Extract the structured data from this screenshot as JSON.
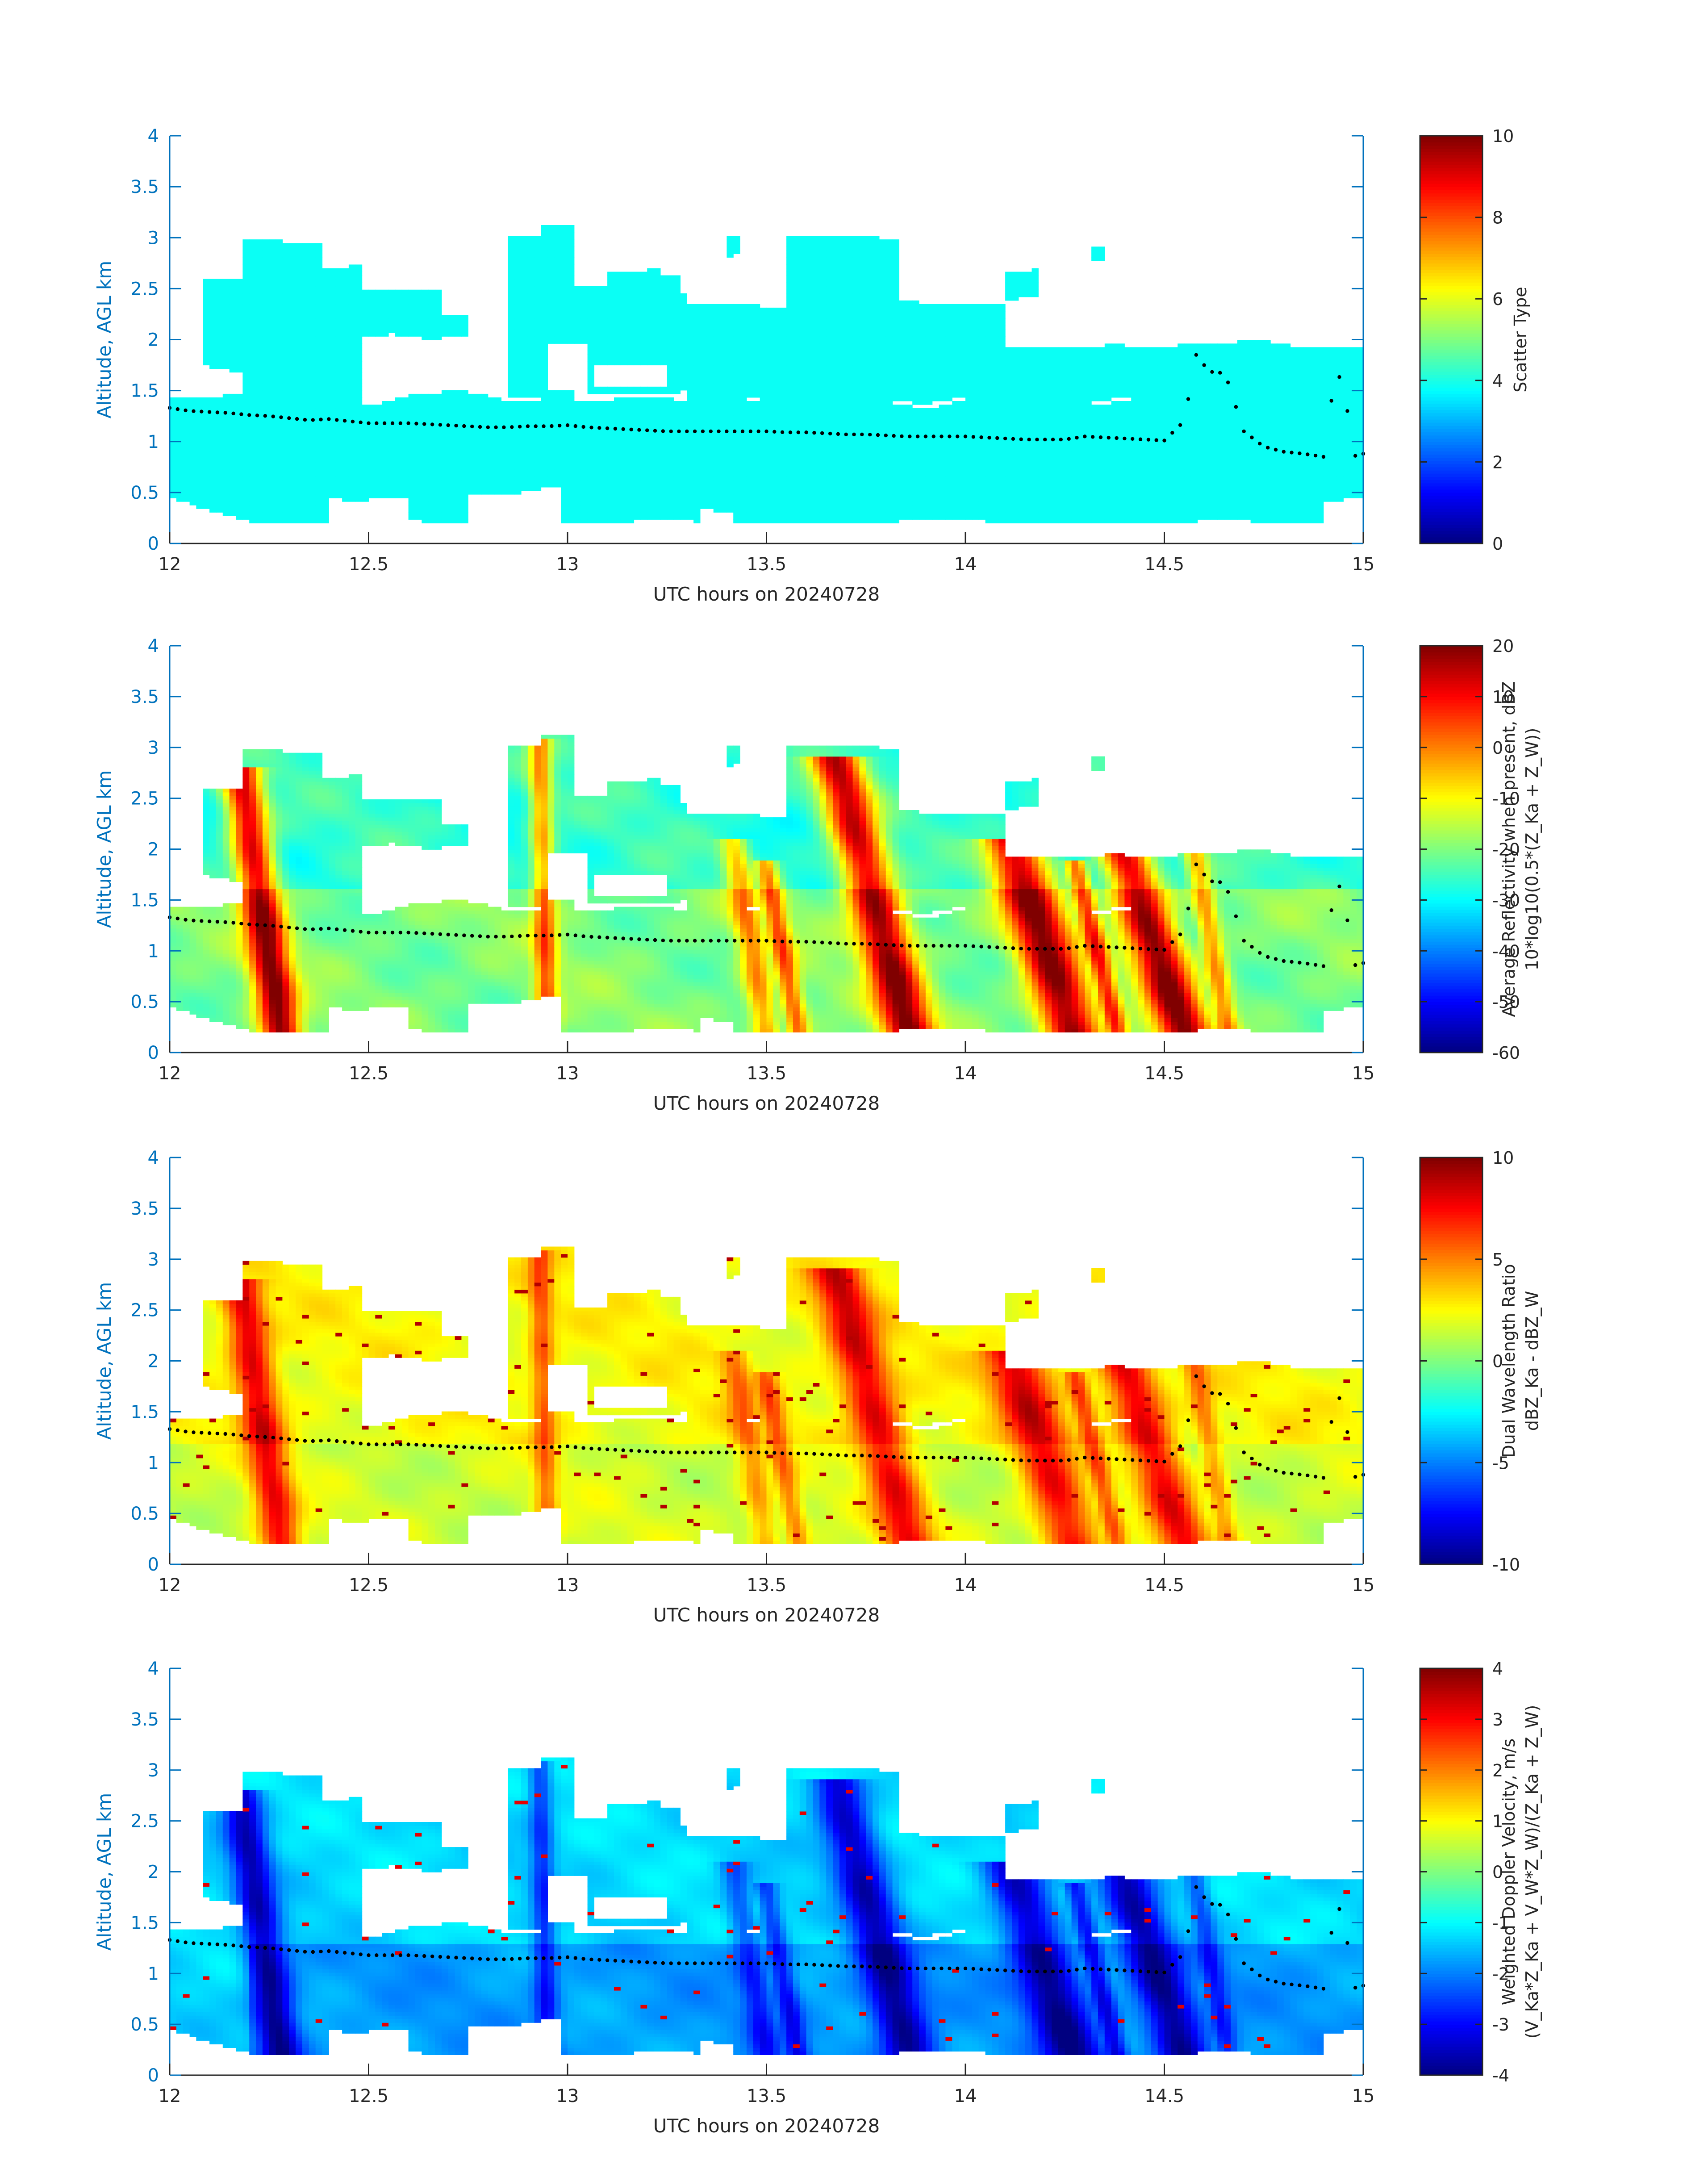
{
  "chart_data": [
    {
      "type": "heatmap",
      "field": "scatter_type",
      "xlabel": "UTC hours on 20240728",
      "ylabel": "Altitude, AGL km",
      "xlim": [
        12,
        15
      ],
      "ylim": [
        0,
        4
      ],
      "x_ticks": [
        "12",
        "12.5",
        "13",
        "13.5",
        "14",
        "14.5",
        "15"
      ],
      "y_ticks": [
        "0",
        "0.5",
        "1",
        "1.5",
        "2",
        "2.5",
        "3",
        "3.5",
        "4"
      ],
      "colorbar": {
        "label_lines": [
          "Scatter Type"
        ],
        "clim": [
          0,
          10
        ],
        "ticks": [
          "0",
          "2",
          "4",
          "6",
          "8",
          "10"
        ],
        "colormap": "jet"
      }
    },
    {
      "type": "heatmap",
      "field": "reflectivity",
      "xlabel": "UTC hours on 20240728",
      "ylabel": "Altitude, AGL km",
      "xlim": [
        12,
        15
      ],
      "ylim": [
        0,
        4
      ],
      "x_ticks": [
        "12",
        "12.5",
        "13",
        "13.5",
        "14",
        "14.5",
        "15"
      ],
      "y_ticks": [
        "0",
        "0.5",
        "1",
        "1.5",
        "2",
        "2.5",
        "3",
        "3.5",
        "4"
      ],
      "colorbar": {
        "label_lines": [
          "Average Reflectivity when present, dBZ",
          "10*log10(0.5*(Z_Ka + Z_W))"
        ],
        "clim": [
          -60,
          20
        ],
        "ticks": [
          "-60",
          "-50",
          "-40",
          "-30",
          "-20",
          "-10",
          "0",
          "10",
          "20"
        ],
        "colormap": "jet"
      }
    },
    {
      "type": "heatmap",
      "field": "dual_wavelength_ratio",
      "xlabel": "UTC hours on 20240728",
      "ylabel": "Altitude, AGL km",
      "xlim": [
        12,
        15
      ],
      "ylim": [
        0,
        4
      ],
      "x_ticks": [
        "12",
        "12.5",
        "13",
        "13.5",
        "14",
        "14.5",
        "15"
      ],
      "y_ticks": [
        "0",
        "0.5",
        "1",
        "1.5",
        "2",
        "2.5",
        "3",
        "3.5",
        "4"
      ],
      "colorbar": {
        "label_lines": [
          "Dual Wavelength Ratio",
          "dBZ_Ka - dBZ_W"
        ],
        "clim": [
          -10,
          10
        ],
        "ticks": [
          "-10",
          "-5",
          "0",
          "5",
          "10"
        ],
        "colormap": "jet"
      }
    },
    {
      "type": "heatmap",
      "field": "doppler_velocity",
      "xlabel": "UTC hours on 20240728",
      "ylabel": "Altitude, AGL km",
      "xlim": [
        12,
        15
      ],
      "ylim": [
        0,
        4
      ],
      "x_ticks": [
        "12",
        "12.5",
        "13",
        "13.5",
        "14",
        "14.5",
        "15"
      ],
      "y_ticks": [
        "0",
        "0.5",
        "1",
        "1.5",
        "2",
        "2.5",
        "3",
        "3.5",
        "4"
      ],
      "colorbar": {
        "label_lines": [
          "Weighted Doppler Velocity, m/s",
          "(V_Ka*Z_Ka + V_W*Z_W)/(Z_Ka + Z_W)"
        ],
        "clim": [
          -4,
          4
        ],
        "ticks": [
          "-4",
          "-3",
          "-2",
          "-1",
          "0",
          "1",
          "2",
          "3",
          "4"
        ],
        "colormap": "jet"
      }
    }
  ],
  "cloud_base_points": [
    [
      12.0,
      1.33
    ],
    [
      12.05,
      1.3
    ],
    [
      12.1,
      1.29
    ],
    [
      12.15,
      1.28
    ],
    [
      12.2,
      1.26
    ],
    [
      12.25,
      1.25
    ],
    [
      12.3,
      1.23
    ],
    [
      12.35,
      1.21
    ],
    [
      12.4,
      1.22
    ],
    [
      12.45,
      1.2
    ],
    [
      12.5,
      1.18
    ],
    [
      12.55,
      1.18
    ],
    [
      12.6,
      1.18
    ],
    [
      12.65,
      1.17
    ],
    [
      12.7,
      1.16
    ],
    [
      12.75,
      1.15
    ],
    [
      12.8,
      1.14
    ],
    [
      12.85,
      1.14
    ],
    [
      12.9,
      1.15
    ],
    [
      12.95,
      1.15
    ],
    [
      13.0,
      1.16
    ],
    [
      13.05,
      1.14
    ],
    [
      13.1,
      1.13
    ],
    [
      13.15,
      1.12
    ],
    [
      13.2,
      1.11
    ],
    [
      13.25,
      1.1
    ],
    [
      13.3,
      1.1
    ],
    [
      13.35,
      1.1
    ],
    [
      13.4,
      1.1
    ],
    [
      13.45,
      1.1
    ],
    [
      13.5,
      1.1
    ],
    [
      13.55,
      1.09
    ],
    [
      13.6,
      1.09
    ],
    [
      13.65,
      1.08
    ],
    [
      13.7,
      1.07
    ],
    [
      13.75,
      1.07
    ],
    [
      13.8,
      1.06
    ],
    [
      13.85,
      1.05
    ],
    [
      13.9,
      1.05
    ],
    [
      13.95,
      1.05
    ],
    [
      14.0,
      1.05
    ],
    [
      14.05,
      1.04
    ],
    [
      14.1,
      1.03
    ],
    [
      14.15,
      1.02
    ],
    [
      14.2,
      1.02
    ],
    [
      14.25,
      1.02
    ],
    [
      14.3,
      1.05
    ],
    [
      14.35,
      1.04
    ],
    [
      14.4,
      1.03
    ],
    [
      14.45,
      1.02
    ],
    [
      14.5,
      1.01
    ],
    [
      14.55,
      1.2
    ],
    [
      14.58,
      1.85
    ],
    [
      14.6,
      1.75
    ],
    [
      14.63,
      1.65
    ],
    [
      14.65,
      1.7
    ],
    [
      14.7,
      1.1
    ],
    [
      14.75,
      0.95
    ],
    [
      14.8,
      0.9
    ],
    [
      14.85,
      0.88
    ],
    [
      14.9,
      0.85
    ],
    [
      14.92,
      1.4
    ],
    [
      14.95,
      1.75
    ],
    [
      14.97,
      0.85
    ],
    [
      15.0,
      0.88
    ]
  ]
}
